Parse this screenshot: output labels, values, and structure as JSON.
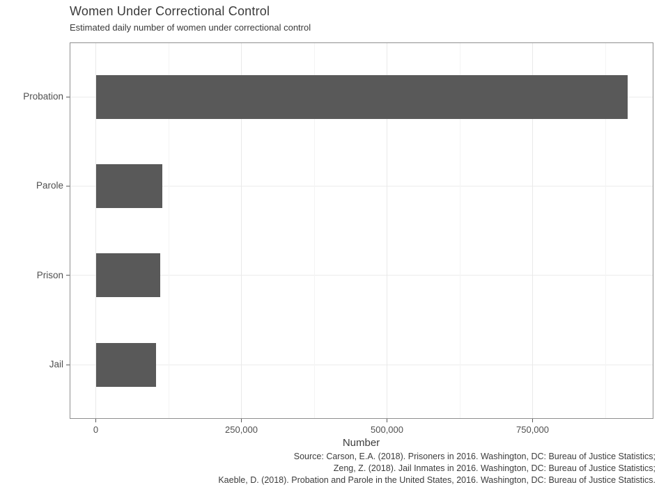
{
  "chart_data": {
    "type": "bar",
    "orientation": "horizontal",
    "title": "Women Under Correctional Control",
    "subtitle": "Estimated daily number of women under correctional control",
    "xlabel": "Number",
    "ylabel": "",
    "categories": [
      "Probation",
      "Parole",
      "Prison",
      "Jail"
    ],
    "values": [
      913000,
      114000,
      111000,
      103000
    ],
    "xlim": [
      0,
      956000
    ],
    "x_ticks": [
      0,
      250000,
      500000,
      750000
    ],
    "x_tick_labels": [
      "0",
      "250,000",
      "500,000",
      "750,000"
    ],
    "x_minor_ticks": [
      125000,
      375000,
      625000,
      875000
    ],
    "grid": "vertical major and minor gridlines; faint horizontal gridline at each category center",
    "legend": "none",
    "bar_color": "#595959",
    "caption_lines": [
      "Source: Carson, E.A. (2018). Prisoners in 2016. Washington, DC: Bureau of Justice Statistics;",
      "Zeng, Z. (2018). Jail Inmates in 2016. Washington, DC: Bureau of Justice Statistics;",
      "Kaeble, D. (2018). Probation and Parole in the United States, 2016. Washington, DC: Bureau of Justice Statistics."
    ]
  },
  "colors": {
    "background": "#ffffff",
    "bar": "#595959",
    "panel_border": "#8e8e8e",
    "grid_major": "#e9e9e9",
    "grid_minor": "#f4f4f4",
    "tick_mark": "#5a5a5a",
    "axis_text": "#4f4f4f",
    "title_text": "#3a3a3a"
  }
}
